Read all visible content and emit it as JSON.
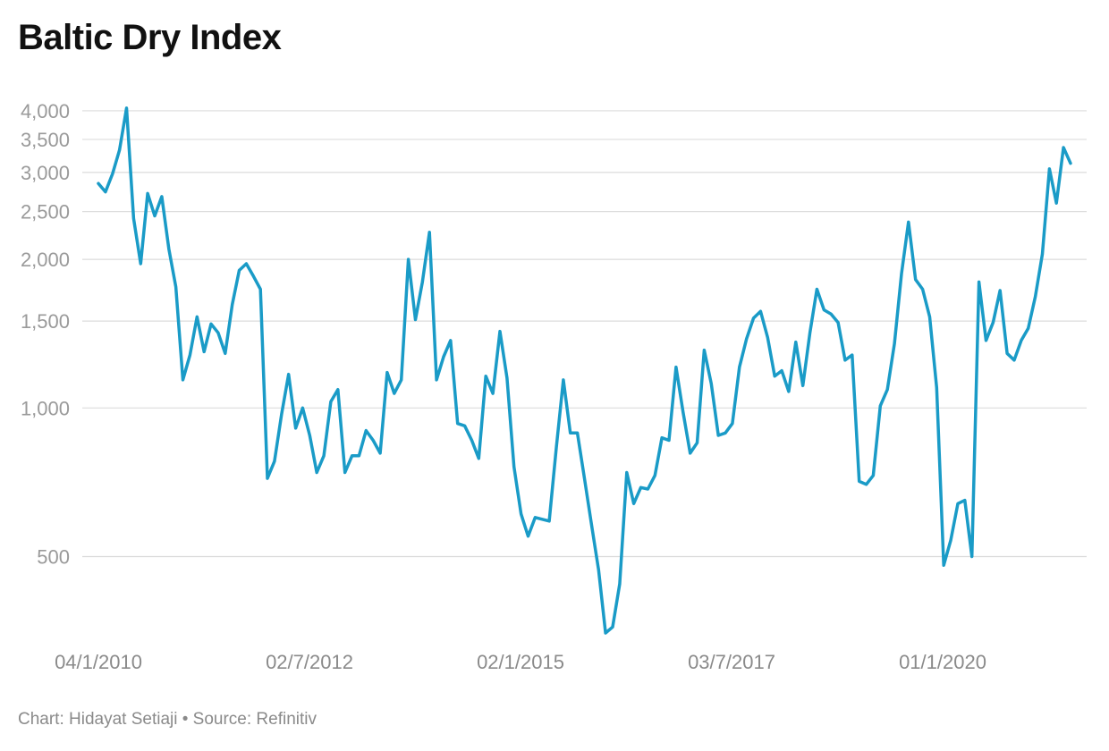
{
  "title": "Baltic Dry Index",
  "footer": "Chart: Hidayat Setiaji • Source: Refinitiv",
  "chart_data": {
    "type": "line",
    "title": "Baltic Dry Index",
    "xlabel": "",
    "ylabel": "",
    "y_scale": "log",
    "ylim": [
      340,
      4100
    ],
    "grid": true,
    "color": "#1a9bc7",
    "y_ticks": [
      500,
      1000,
      1500,
      2000,
      2500,
      3000,
      3500,
      4000
    ],
    "y_tick_labels": [
      "500",
      "1,000",
      "1,500",
      "2,000",
      "2,500",
      "3,000",
      "3,500",
      "4,000"
    ],
    "x_ticks": [
      "04/1/2010",
      "02/7/2012",
      "02/1/2015",
      "03/7/2017",
      "01/1/2020"
    ],
    "series": [
      {
        "values": [
          2850,
          2740,
          2980,
          3330,
          4050,
          2420,
          1960,
          2720,
          2450,
          2680,
          2100,
          1760,
          1140,
          1280,
          1530,
          1300,
          1480,
          1420,
          1290,
          1620,
          1900,
          1960,
          1850,
          1740,
          720,
          780,
          970,
          1170,
          910,
          1000,
          880,
          740,
          800,
          1030,
          1090,
          740,
          800,
          800,
          900,
          860,
          810,
          1180,
          1070,
          1140,
          2000,
          1510,
          1800,
          2270,
          1140,
          1270,
          1370,
          930,
          920,
          860,
          790,
          1160,
          1070,
          1430,
          1150,
          760,
          610,
          550,
          600,
          595,
          590,
          830,
          1140,
          890,
          890,
          720,
          580,
          470,
          350,
          360,
          440,
          740,
          640,
          690,
          685,
          730,
          870,
          860,
          1210,
          980,
          810,
          850,
          1310,
          1120,
          880,
          890,
          930,
          1210,
          1380,
          1520,
          1570,
          1390,
          1160,
          1190,
          1080,
          1360,
          1110,
          1420,
          1740,
          1580,
          1550,
          1490,
          1250,
          1280,
          710,
          700,
          730,
          1010,
          1090,
          1350,
          1870,
          2380,
          1820,
          1740,
          1530,
          1100,
          480,
          540,
          640,
          650,
          500,
          1800,
          1370,
          1490,
          1730,
          1290,
          1250,
          1370,
          1450,
          1680,
          2050,
          3050,
          2600,
          3370,
          3130
        ]
      }
    ]
  }
}
